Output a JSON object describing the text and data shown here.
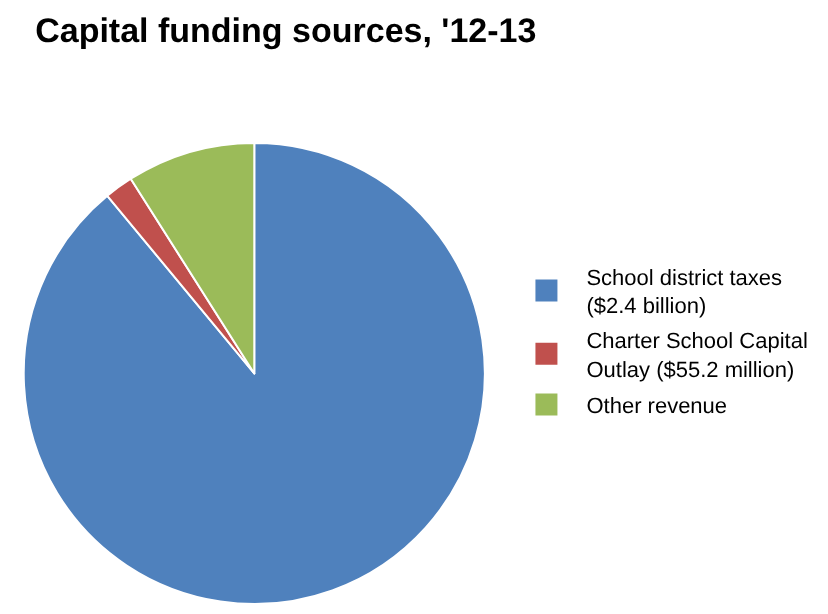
{
  "chart_data": {
    "type": "pie",
    "title": "Capital funding sources, '12-13",
    "categories": [
      "School district taxes ($2.4 billion)",
      "Charter School Capital Outlay ($55.2 million)",
      "Other revenue"
    ],
    "values": [
      89.0,
      2.0,
      9.0
    ],
    "colors": [
      "#4f81bd",
      "#c0504d",
      "#9bbb59"
    ],
    "legend": "right"
  }
}
